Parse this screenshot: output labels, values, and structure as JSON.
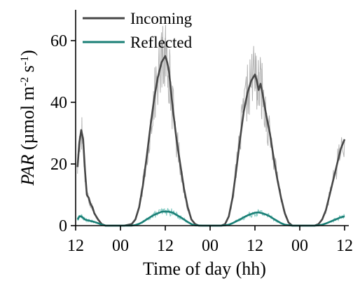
{
  "chart_data": {
    "type": "line",
    "title": "",
    "xlabel": "Time of day (hh)",
    "ylabel": {
      "italic": "PAR",
      "rest": " (µmol m",
      "sup1": "-2",
      "mid": " s",
      "sup2": "-1",
      "end": ")"
    },
    "x_tick_labels": [
      "12",
      "00",
      "12",
      "00",
      "12",
      "00",
      "12"
    ],
    "x_tick_hours": [
      12,
      24,
      36,
      48,
      60,
      72,
      84
    ],
    "xlim": [
      12,
      84
    ],
    "ylim": [
      0,
      70
    ],
    "y_ticks": [
      0,
      20,
      40,
      60
    ],
    "grid": false,
    "legend": {
      "position": "top-left",
      "entries": [
        "Incoming",
        "Reflected"
      ]
    },
    "series": [
      {
        "name": "Incoming",
        "color": "#474747",
        "raw_color": "#b3b3b3",
        "x": [
          12.5,
          13,
          13.5,
          14,
          14.5,
          15,
          15.5,
          16,
          16.5,
          17,
          18,
          19,
          20,
          22,
          25,
          27,
          28,
          29,
          30,
          31,
          32,
          33,
          34,
          35,
          35.5,
          36,
          36.5,
          37,
          37.5,
          38,
          39,
          40,
          41,
          42,
          43,
          44,
          45,
          46,
          48,
          51,
          52,
          53,
          54,
          55,
          56,
          57,
          58,
          59,
          60,
          60.5,
          61,
          61.5,
          62,
          63,
          64,
          65,
          66,
          67,
          68,
          69,
          70,
          72,
          74,
          76,
          77,
          78,
          79,
          80,
          81,
          82,
          83,
          84
        ],
        "y": [
          19,
          27,
          31,
          28,
          18,
          10,
          9,
          7,
          6,
          4,
          2,
          0.5,
          0,
          0,
          0,
          0.5,
          2,
          6,
          13,
          22,
          32,
          41,
          48,
          53,
          54,
          55,
          53,
          50,
          44,
          38,
          28,
          20,
          12,
          6,
          2,
          0.5,
          0,
          0,
          0,
          0,
          0.5,
          3,
          9,
          18,
          28,
          37,
          43,
          47,
          49,
          47,
          44,
          46,
          43,
          36,
          30,
          22,
          15,
          9,
          4,
          1,
          0,
          0,
          0,
          0,
          0.5,
          2,
          5,
          10,
          15,
          20,
          25,
          28
        ]
      },
      {
        "name": "Reflected",
        "color": "#1a7f76",
        "raw_color": "#7fc9c1",
        "x": [
          12.5,
          13,
          13.5,
          14,
          14.5,
          15,
          16,
          17,
          18,
          19,
          20,
          22,
          25,
          27,
          28,
          29,
          30,
          31,
          32,
          33,
          34,
          35,
          36,
          37,
          38,
          39,
          40,
          41,
          42,
          43,
          44,
          46,
          48,
          51,
          52,
          53,
          54,
          55,
          56,
          57,
          58,
          59,
          60,
          61,
          62,
          63,
          64,
          65,
          66,
          67,
          68,
          70,
          72,
          74,
          76,
          77,
          78,
          79,
          80,
          81,
          82,
          83,
          84
        ],
        "y": [
          2,
          3,
          3,
          2.5,
          2,
          1.8,
          1.5,
          1.2,
          0.8,
          0.3,
          0,
          0,
          0,
          0,
          0.2,
          0.6,
          1.2,
          2,
          2.8,
          3.5,
          4,
          4.5,
          4.6,
          4.5,
          4.2,
          3.5,
          2.8,
          2,
          1.2,
          0.5,
          0.1,
          0,
          0,
          0,
          0.1,
          0.3,
          0.8,
          1.4,
          2,
          2.7,
          3.3,
          3.8,
          4.2,
          4.3,
          4,
          3.6,
          3,
          2.2,
          1.5,
          0.8,
          0.3,
          0,
          0,
          0,
          0,
          0.1,
          0.3,
          0.7,
          1.2,
          1.7,
          2.2,
          2.7,
          3
        ]
      }
    ]
  }
}
